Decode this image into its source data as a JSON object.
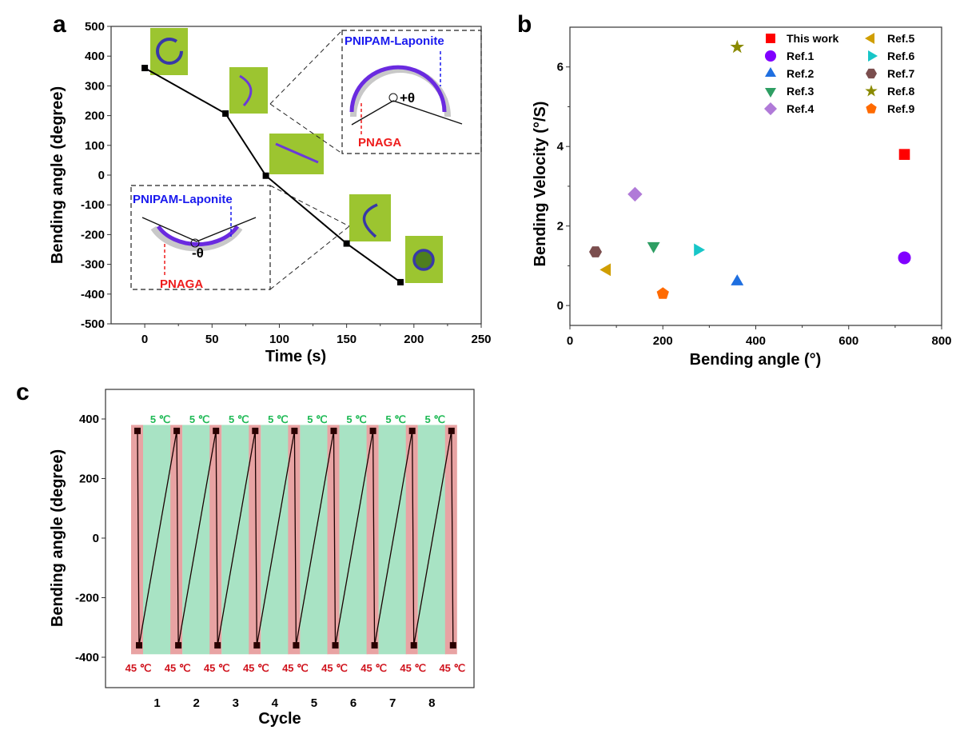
{
  "chart_data": [
    {
      "panel": "a",
      "type": "line",
      "title": "",
      "xlabel": "Time (s)",
      "ylabel": "Bending angle (degree)",
      "xlim": [
        -25,
        250
      ],
      "ylim": [
        -500,
        500
      ],
      "xticks": [
        0,
        50,
        100,
        150,
        200,
        250
      ],
      "yticks": [
        -500,
        -400,
        -300,
        -200,
        -100,
        0,
        100,
        200,
        300,
        400,
        500
      ],
      "x": [
        0,
        60,
        90,
        150,
        190
      ],
      "y": [
        360,
        207,
        -2,
        -230,
        -360
      ],
      "marker": "square",
      "annotations": {
        "positive_inset": {
          "top_label": "PNIPAM-Laponite",
          "bottom_label": "PNAGA",
          "angle_label": "+θ"
        },
        "negative_inset": {
          "top_label": "PNIPAM-Laponite",
          "bottom_label": "PNAGA",
          "angle_label": "-θ"
        }
      }
    },
    {
      "panel": "b",
      "type": "scatter",
      "title": "",
      "xlabel": "Bending angle (°)",
      "ylabel": "Bending Velocity (°/S)",
      "xlim": [
        0,
        800
      ],
      "ylim": [
        -0.5,
        7
      ],
      "xticks": [
        0,
        200,
        400,
        600,
        800
      ],
      "yticks": [
        0,
        2,
        4,
        6
      ],
      "legend_position": "top-right",
      "series": [
        {
          "name": "This work",
          "x": 720,
          "y": 3.8,
          "marker": "square",
          "color": "#ff0000"
        },
        {
          "name": "Ref.1",
          "x": 720,
          "y": 1.2,
          "marker": "circle",
          "color": "#8000ff"
        },
        {
          "name": "Ref.2",
          "x": 360,
          "y": 0.6,
          "marker": "triangle-up",
          "color": "#1f6fe0"
        },
        {
          "name": "Ref.3",
          "x": 180,
          "y": 1.5,
          "marker": "triangle-down",
          "color": "#2e9e63"
        },
        {
          "name": "Ref.4",
          "x": 140,
          "y": 2.8,
          "marker": "diamond",
          "color": "#b07ad8"
        },
        {
          "name": "Ref.5",
          "x": 80,
          "y": 0.9,
          "marker": "triangle-left",
          "color": "#d09e00"
        },
        {
          "name": "Ref.6",
          "x": 275,
          "y": 1.4,
          "marker": "triangle-right",
          "color": "#18c6c8"
        },
        {
          "name": "Ref.7",
          "x": 55,
          "y": 1.35,
          "marker": "hexagon",
          "color": "#7b4e4e"
        },
        {
          "name": "Ref.8",
          "x": 360,
          "y": 6.5,
          "marker": "star",
          "color": "#8a8a00"
        },
        {
          "name": "Ref.9",
          "x": 200,
          "y": 0.3,
          "marker": "pentagon",
          "color": "#ff6a00"
        }
      ]
    },
    {
      "panel": "c",
      "type": "line",
      "title": "",
      "xlabel": "Cycle",
      "ylabel": "Bending angle (degree)",
      "xlim": [
        -0.15,
        9.0
      ],
      "ylim": [
        -500,
        500
      ],
      "xtick_labels": [
        "1",
        "2",
        "3",
        "4",
        "5",
        "6",
        "7",
        "8"
      ],
      "yticks": [
        -400,
        -200,
        0,
        200,
        400
      ],
      "cycles": 8,
      "high_angle": 360,
      "low_angle": -360,
      "hot_label": "45 ℃",
      "cold_label": "5 ℃",
      "hot_color": "#e8a3a3",
      "cold_color": "#a8e3c4"
    }
  ],
  "panels": {
    "a": "a",
    "b": "b",
    "c": "c"
  }
}
